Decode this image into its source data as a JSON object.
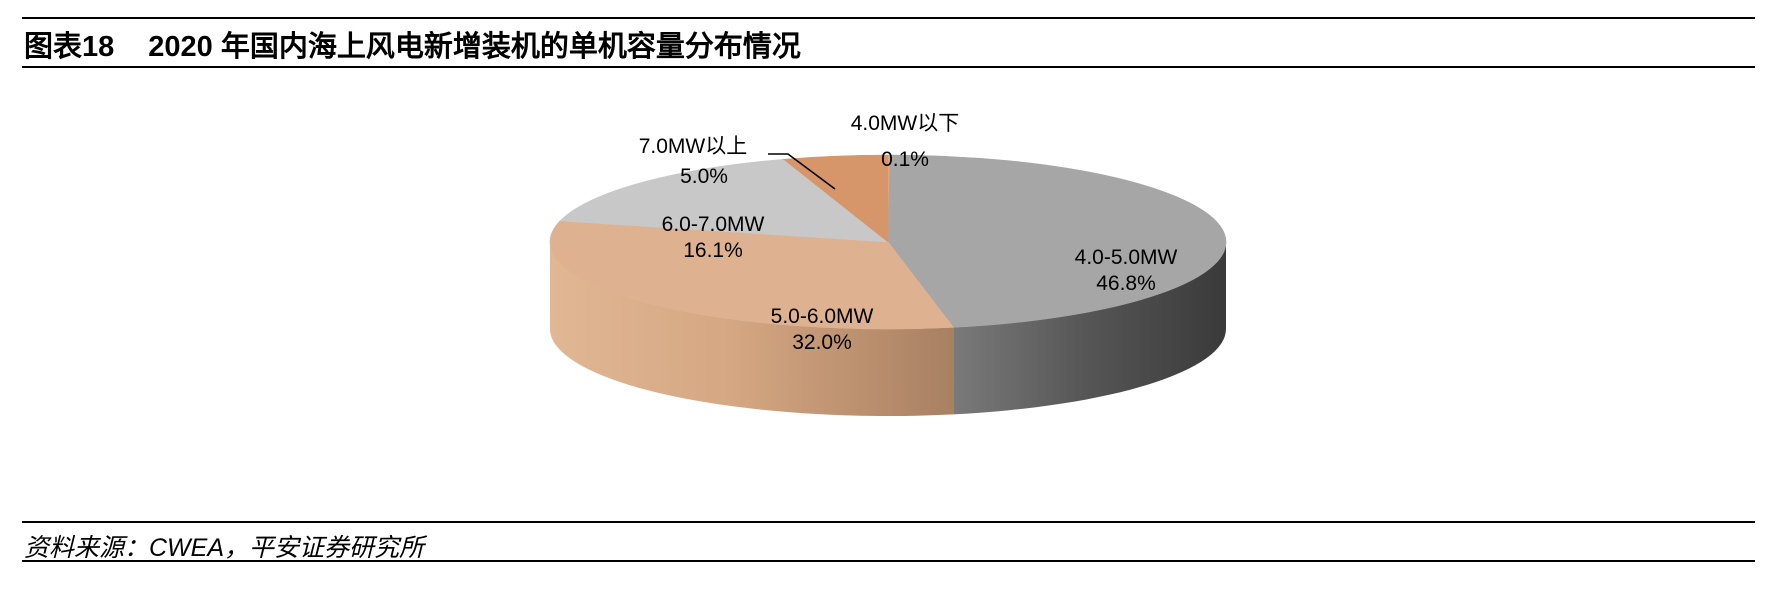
{
  "header": {
    "figure_label": "图表18",
    "title": "2020 年国内海上风电新增装机的单机容量分布情况"
  },
  "footer": {
    "source": "资料来源：CWEA，平安证券研究所"
  },
  "chart_data": {
    "type": "pie",
    "style": "3d",
    "title": "",
    "slices": [
      {
        "name": "4.0MW以下",
        "value": 0.1,
        "label": "0.1%",
        "color": "#d9b08c",
        "side_color": "#a88060"
      },
      {
        "name": "4.0-5.0MW",
        "value": 46.8,
        "label": "46.8%",
        "color": "#a6a6a6",
        "side_color": "#555555"
      },
      {
        "name": "5.0-6.0MW",
        "value": 32.0,
        "label": "32.0%",
        "color": "#deb290",
        "side_color": "#b48764"
      },
      {
        "name": "6.0-7.0MW",
        "value": 16.1,
        "label": "16.1%",
        "color": "#c8c8c8",
        "side_color": "#8c8c8c"
      },
      {
        "name": "7.0MW以上",
        "value": 5.0,
        "label": "5.0%",
        "color": "#d6966a",
        "side_color": "#a86e46"
      }
    ],
    "start": "top, clockwise"
  }
}
